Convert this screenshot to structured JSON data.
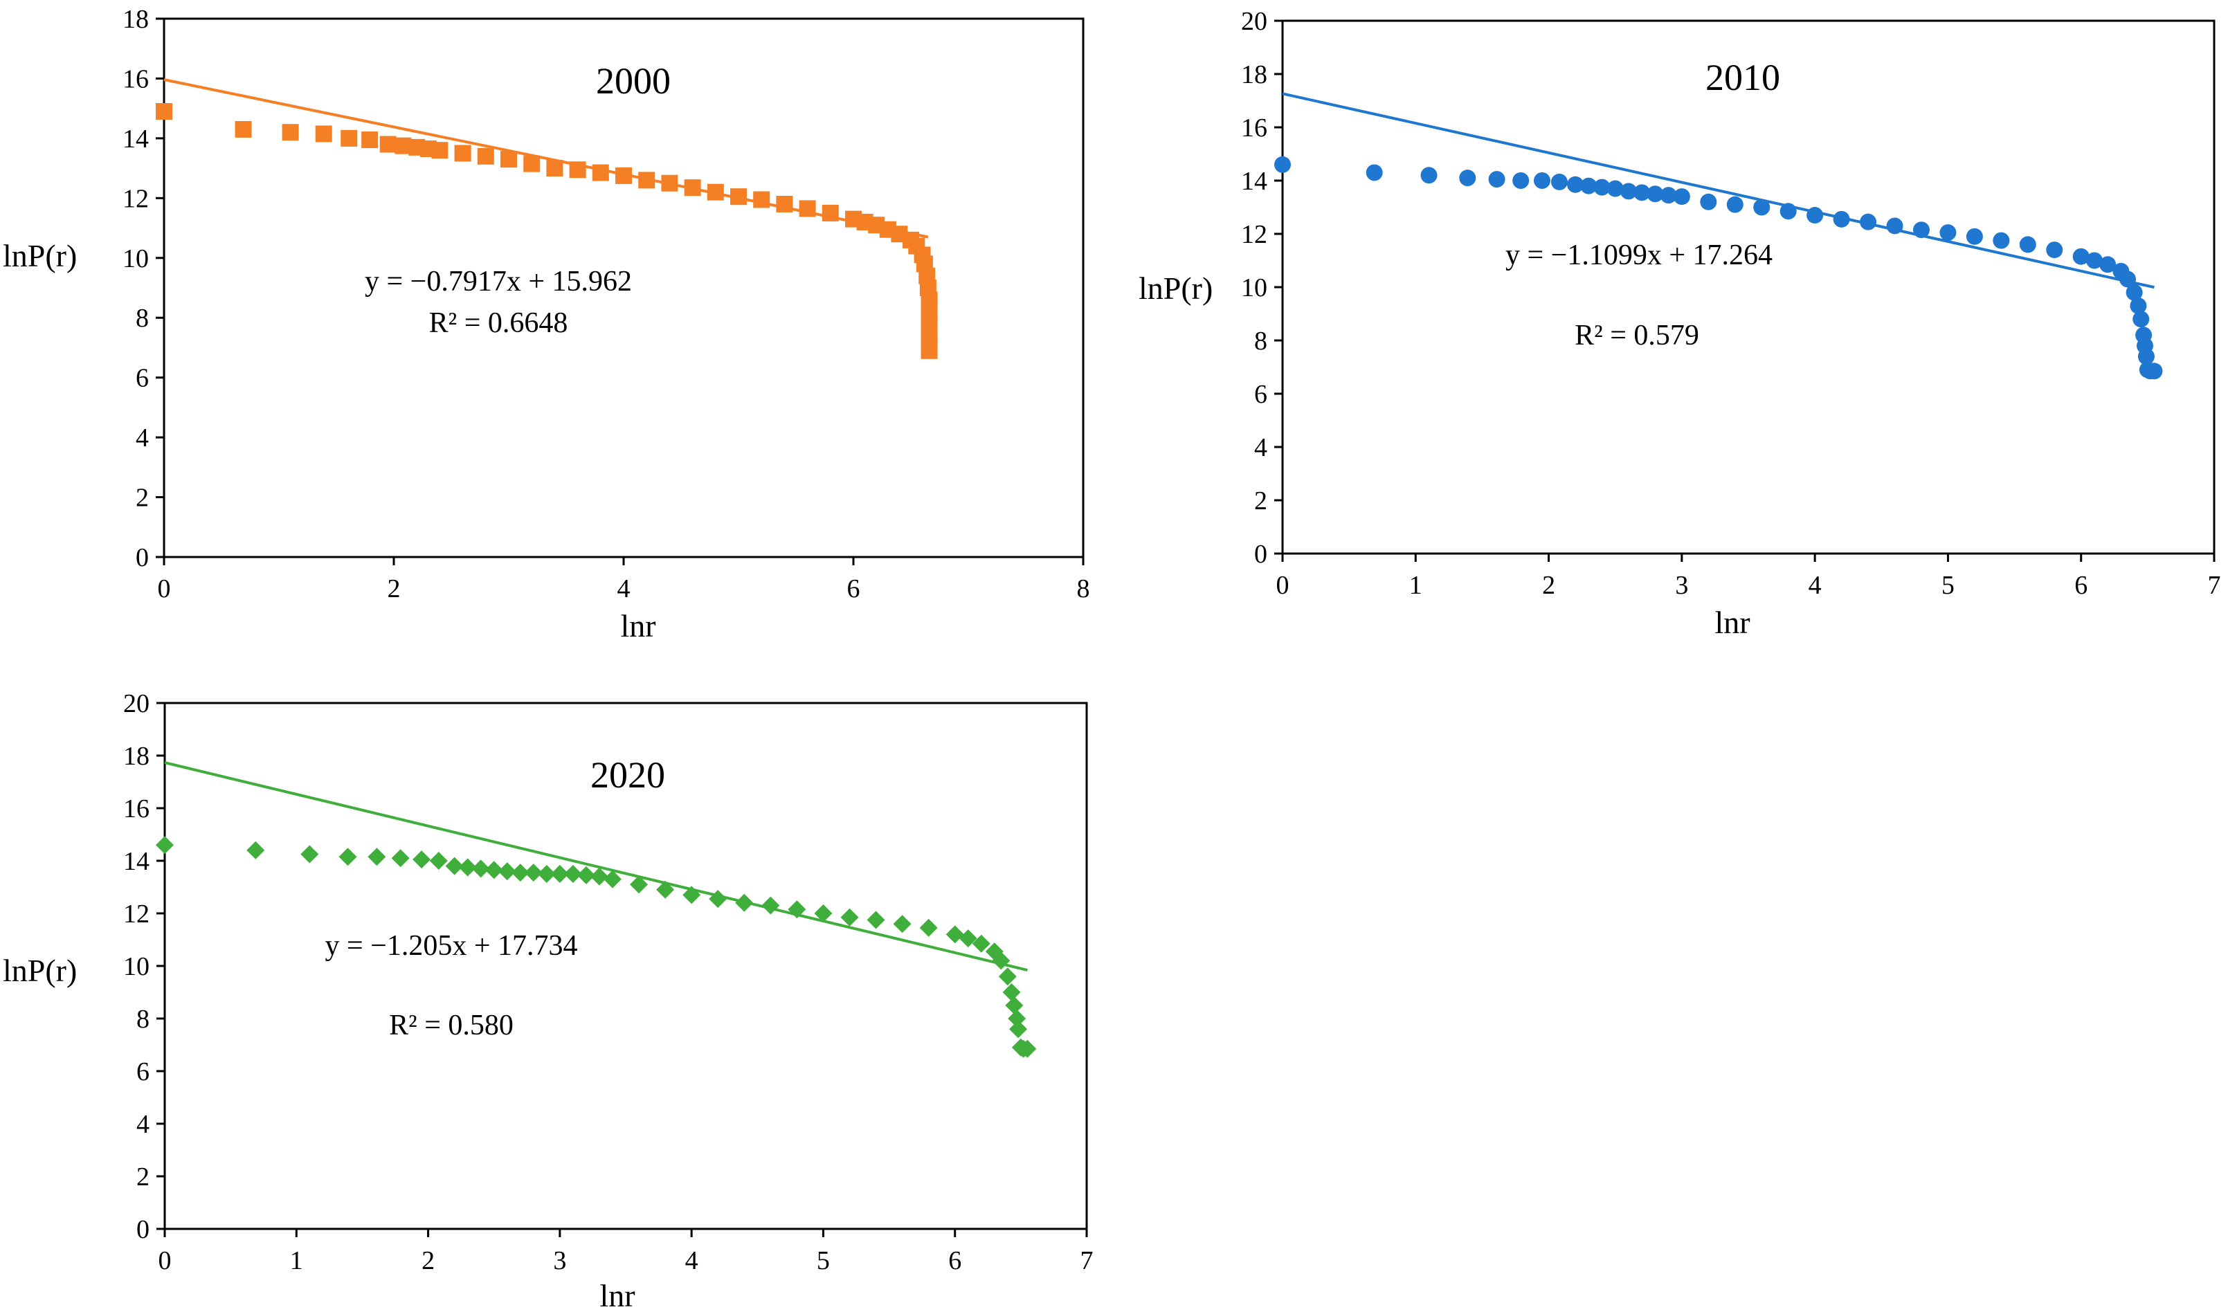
{
  "chart_data": [
    {
      "type": "scatter",
      "title": "2000",
      "xlabel": "lnr",
      "ylabel": "lnP(r)",
      "xlim": [
        0,
        8
      ],
      "ylim": [
        0,
        18
      ],
      "xticks": [
        0,
        2,
        4,
        6,
        8
      ],
      "yticks": [
        0,
        2,
        4,
        6,
        8,
        10,
        12,
        14,
        16,
        18
      ],
      "grid": false,
      "color": "#F47F24",
      "marker": "square",
      "equation": "y = −0.7917x + 15.962",
      "r_squared": "R² = 0.6648",
      "trendline": {
        "slope": -0.7917,
        "intercept": 15.962,
        "x_range": [
          0,
          6.65
        ]
      },
      "series": [
        {
          "name": "2000",
          "x": [
            0,
            0.69,
            1.1,
            1.39,
            1.61,
            1.79,
            1.95,
            2.08,
            2.2,
            2.3,
            2.4,
            2.6,
            2.8,
            3.0,
            3.2,
            3.4,
            3.6,
            3.8,
            4.0,
            4.2,
            4.4,
            4.6,
            4.8,
            5.0,
            5.2,
            5.4,
            5.6,
            5.8,
            6.0,
            6.1,
            6.2,
            6.3,
            6.4,
            6.5,
            6.55,
            6.6,
            6.62,
            6.64,
            6.65,
            6.66,
            6.66,
            6.66,
            6.66,
            6.66
          ],
          "y": [
            14.9,
            14.3,
            14.2,
            14.15,
            14.0,
            13.95,
            13.8,
            13.75,
            13.7,
            13.65,
            13.6,
            13.5,
            13.4,
            13.3,
            13.15,
            13.0,
            12.95,
            12.85,
            12.75,
            12.6,
            12.5,
            12.35,
            12.2,
            12.05,
            11.95,
            11.8,
            11.65,
            11.5,
            11.3,
            11.2,
            11.1,
            10.95,
            10.8,
            10.6,
            10.4,
            10.1,
            9.8,
            9.4,
            9.0,
            8.6,
            8.2,
            7.7,
            7.3,
            6.9
          ]
        }
      ]
    },
    {
      "type": "scatter",
      "title": "2010",
      "xlabel": "lnr",
      "ylabel": "lnP(r)",
      "xlim": [
        0,
        7
      ],
      "ylim": [
        0,
        20
      ],
      "xticks": [
        0,
        1,
        2,
        3,
        4,
        5,
        6,
        7
      ],
      "yticks": [
        0,
        2,
        4,
        6,
        8,
        10,
        12,
        14,
        16,
        18,
        20
      ],
      "grid": false,
      "color": "#1F77D0",
      "marker": "circle",
      "equation": "y = −1.1099x + 17.264",
      "r_squared": "R² = 0.579",
      "trendline": {
        "slope": -1.1099,
        "intercept": 17.264,
        "x_range": [
          0,
          6.55
        ]
      },
      "series": [
        {
          "name": "2010",
          "x": [
            0,
            0.69,
            1.1,
            1.39,
            1.61,
            1.79,
            1.95,
            2.08,
            2.2,
            2.3,
            2.4,
            2.5,
            2.6,
            2.7,
            2.8,
            2.9,
            3.0,
            3.2,
            3.4,
            3.6,
            3.8,
            4.0,
            4.2,
            4.4,
            4.6,
            4.8,
            5.0,
            5.2,
            5.4,
            5.6,
            5.8,
            6.0,
            6.1,
            6.2,
            6.3,
            6.35,
            6.4,
            6.43,
            6.45,
            6.47,
            6.48,
            6.49,
            6.5,
            6.52,
            6.55
          ],
          "y": [
            14.6,
            14.3,
            14.2,
            14.1,
            14.05,
            14.0,
            14.0,
            13.95,
            13.85,
            13.8,
            13.75,
            13.7,
            13.6,
            13.55,
            13.5,
            13.45,
            13.4,
            13.2,
            13.1,
            13.0,
            12.85,
            12.7,
            12.55,
            12.45,
            12.3,
            12.15,
            12.05,
            11.9,
            11.75,
            11.6,
            11.4,
            11.15,
            11.0,
            10.85,
            10.6,
            10.3,
            9.8,
            9.3,
            8.8,
            8.2,
            7.8,
            7.4,
            6.9,
            6.85,
            6.85
          ]
        }
      ]
    },
    {
      "type": "scatter",
      "title": "2020",
      "xlabel": "lnr",
      "ylabel": "lnP(r)",
      "xlim": [
        0,
        7
      ],
      "ylim": [
        0,
        20
      ],
      "xticks": [
        0,
        1,
        2,
        3,
        4,
        5,
        6,
        7
      ],
      "yticks": [
        0,
        2,
        4,
        6,
        8,
        10,
        12,
        14,
        16,
        18,
        20
      ],
      "grid": false,
      "color": "#3FAE3A",
      "marker": "diamond",
      "equation": "y = −1.205x + 17.734",
      "r_squared": "R² = 0.580",
      "trendline": {
        "slope": -1.205,
        "intercept": 17.734,
        "x_range": [
          0,
          6.55
        ]
      },
      "series": [
        {
          "name": "2020",
          "x": [
            0,
            0.69,
            1.1,
            1.39,
            1.61,
            1.79,
            1.95,
            2.08,
            2.2,
            2.3,
            2.4,
            2.5,
            2.6,
            2.7,
            2.8,
            2.9,
            3.0,
            3.1,
            3.2,
            3.3,
            3.4,
            3.6,
            3.8,
            4.0,
            4.2,
            4.4,
            4.6,
            4.8,
            5.0,
            5.2,
            5.4,
            5.6,
            5.8,
            6.0,
            6.1,
            6.2,
            6.3,
            6.35,
            6.4,
            6.43,
            6.45,
            6.47,
            6.48,
            6.5,
            6.52,
            6.55
          ],
          "y": [
            14.6,
            14.4,
            14.25,
            14.15,
            14.15,
            14.1,
            14.05,
            14.0,
            13.8,
            13.75,
            13.7,
            13.65,
            13.6,
            13.55,
            13.55,
            13.5,
            13.5,
            13.5,
            13.45,
            13.4,
            13.3,
            13.1,
            12.9,
            12.7,
            12.55,
            12.4,
            12.3,
            12.15,
            12.0,
            11.85,
            11.75,
            11.6,
            11.45,
            11.2,
            11.05,
            10.85,
            10.55,
            10.2,
            9.6,
            9.0,
            8.5,
            8.0,
            7.6,
            6.9,
            6.85,
            6.85
          ]
        }
      ]
    }
  ]
}
